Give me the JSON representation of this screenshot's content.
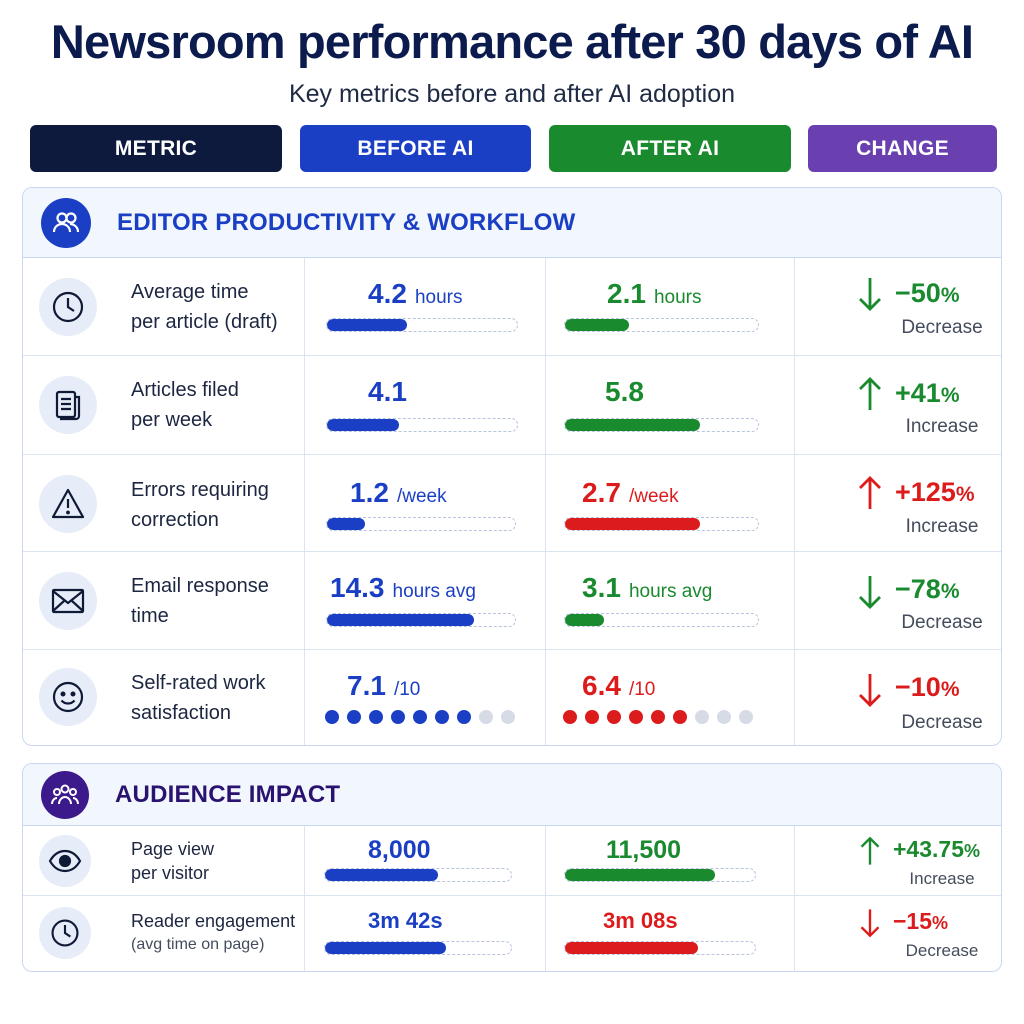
{
  "title": "Newsroom performance after 30 days of AI",
  "subtitle": "Key metrics before and after AI adoption",
  "columns": {
    "metric": "METRIC",
    "before": "BEFORE AI",
    "after": "AFTER AI",
    "change": "CHANGE"
  },
  "colors": {
    "metric": "#0d1a3d",
    "before": "#1b3fc4",
    "after": "#1a8a2f",
    "change": "#6a3fb0",
    "red": "#dc1c1c",
    "section1": "#1b3fc4",
    "section2": "#3d1a8c"
  },
  "sections": [
    {
      "title": "EDITOR PRODUCTIVITY & WORKFLOW",
      "icon": "users-icon",
      "rows": [
        {
          "icon": "clock-icon",
          "label_line1": "Average time",
          "label_line2": "per article (draft)",
          "before": {
            "value": "4.2",
            "unit": "hours",
            "progress": 0.42
          },
          "after": {
            "value": "2.1",
            "unit": "hours",
            "progress": 0.33,
            "color": "green"
          },
          "change": {
            "direction": "down",
            "value": "−50",
            "suffix": "%",
            "label": "Decrease",
            "color": "green"
          }
        },
        {
          "icon": "document-icon",
          "label_line1": "Articles filed",
          "label_line2": "per week",
          "before": {
            "value": "4.1",
            "unit": "",
            "progress": 0.38
          },
          "after": {
            "value": "5.8",
            "unit": "",
            "progress": 0.7,
            "color": "green"
          },
          "change": {
            "direction": "up",
            "value": "+41",
            "suffix": "%",
            "label": "Increase",
            "color": "green"
          }
        },
        {
          "icon": "warning-icon",
          "label_line1": "Errors requiring",
          "label_line2": "correction",
          "before": {
            "value": "1.2",
            "unit": "/week",
            "progress": 0.2
          },
          "after": {
            "value": "2.7",
            "unit": "/week",
            "progress": 0.7,
            "color": "red"
          },
          "change": {
            "direction": "up",
            "value": "+125",
            "suffix": "%",
            "label": "Increase",
            "color": "red"
          }
        },
        {
          "icon": "mail-icon",
          "label_line1": "Email response",
          "label_line2": "time",
          "before": {
            "value": "14.3",
            "unit": "hours avg",
            "progress": 0.78
          },
          "after": {
            "value": "3.1",
            "unit": "hours avg",
            "progress": 0.2,
            "color": "green"
          },
          "change": {
            "direction": "down",
            "value": "−78",
            "suffix": "%",
            "label": "Decrease",
            "color": "green"
          }
        },
        {
          "icon": "smile-icon",
          "label_line1": "Self-rated work",
          "label_line2": "satisfaction",
          "before": {
            "value": "7.1",
            "unit": "/10",
            "dots_filled": 7,
            "dots_total": 9
          },
          "after": {
            "value": "6.4",
            "unit": "/10",
            "dots_filled": 6,
            "dots_total": 9,
            "color": "red"
          },
          "change": {
            "direction": "down",
            "value": "−10",
            "suffix": "%",
            "label": "Decrease",
            "color": "red"
          }
        }
      ]
    },
    {
      "title": "AUDIENCE IMPACT",
      "icon": "audience-icon",
      "rows": [
        {
          "icon": "eye-icon",
          "label_line1": "Page view",
          "label_line2": "per visitor",
          "before": {
            "value": "8,000",
            "unit": "",
            "progress": 0.61
          },
          "after": {
            "value": "11,500",
            "unit": "",
            "progress": 0.79,
            "color": "green"
          },
          "change": {
            "direction": "up",
            "value": "+43.75",
            "suffix": "%",
            "label": "Increase",
            "color": "green"
          }
        },
        {
          "icon": "clock-icon",
          "label_line1": "Reader engagement",
          "label_line2": "(avg time on page)",
          "before": {
            "value": "3m 42s",
            "unit": "",
            "progress": 0.65
          },
          "after": {
            "value": "3m 08s",
            "unit": "",
            "progress": 0.7,
            "color": "red"
          },
          "change": {
            "direction": "down",
            "value": "−15",
            "suffix": "%",
            "label": "Decrease",
            "color": "red"
          }
        }
      ]
    }
  ]
}
